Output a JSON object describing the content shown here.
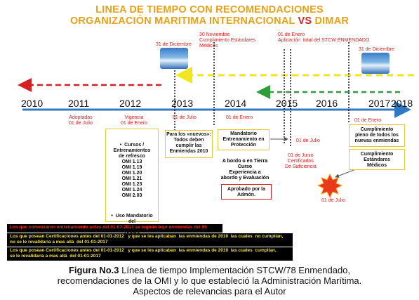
{
  "title": {
    "line1": "LINEA DE TIEMPO CON RECOMENDACIONES",
    "line2_a": "ORGANIZACIÓN MARITIMA INTERNACIONAL",
    "line2_vs": "VS",
    "line2_b": "DIMAR"
  },
  "years": [
    "2010",
    "2011",
    "2012",
    "2013",
    "2014",
    "2015",
    "2016",
    "2017",
    "2018"
  ],
  "top_notes": {
    "dic_2013": "31 de Diciembre",
    "nov_2014": "30 Noviembre\nCumplimiento Estándares\nMédicos",
    "ene_2016": "01 de Enero\nAplicación  total del STCW ENMENDADO",
    "dic_2017": "31 de Diciembre"
  },
  "below_notes": {
    "adoptadas": "Adoptadas\n01 de Julio",
    "vigencia": "Vigencia\n01 de Enero",
    "julio_2013": "01 de Julio",
    "enero_2014": "01 de Enero",
    "julio_2015": "01  de  Julio",
    "junio_2015": "01 de Junio\nCertificados\nDe Suficiencia",
    "julio_2016": "01 de Julio",
    "enero_2017": "01 de Enero"
  },
  "boxes": {
    "cursos": "•  Cursos /\nEntrenamientos\nde refresco\nOMI 1.13\nOMI 1.19\nOMI 1.20\nOMI 1.21\nOMI 1.23\nOMI 1.24\nOMI 2.03",
    "uso": "•  Uso Mandatorio\ndel\nTraining  Record\nBooks\nPara los «nuevos»",
    "nuevos": "Para los «nuevos»:\nTodos deben\ncumplir las\nEnmiendas 2010",
    "mandatorio": "Mandatorio\nEntrenamiento en\nProtección",
    "abordo": "A bordo o en Tierra\nCurso\nExperiencia a\nabordo y Evaluación",
    "aprobado": "Aprobado por la\nAdmón.",
    "cumplimiento": "Cumplimiento\npleno de todos los\nnuevas enmiendas",
    "estandares": "Cumplimiento\nEstándares\nMédicos"
  },
  "footer": {
    "line1": "Los que comenzaron  entrenamiento antes del 01-07-2013  se regirán  bajo   enmiendas del 95",
    "line2": "Los que posean Certificaciones antes del 01-01-2012   y que se les aplicaban  las enmiendas de 2010  las cuales  no cumplían,\nno se le revalidaría a mas allá  del 01-01-2017",
    "line3": "Los que posean Certificaciones antes del 01-01-2012   y que se les aplicaban  las enmiendas de 2010  las cuales  cumplían,\nse le revalidaría a mas allá  del 01-01-2017"
  },
  "caption": {
    "label": "Figura No.3",
    "text": " Línea de tiempo Implementación  STCW/78 Enmendado,",
    "line2": "recomendaciones de la OMI y lo que estableció la Administración  Marítima.",
    "line3": "Aspectos de relevancias  para el Autor"
  },
  "colors": {
    "title": "#e8a117",
    "vs": "#d42020",
    "timeline": "#2f78c4",
    "red_dash": "#d42020",
    "yellow_dash": "#f1e61e",
    "green_dash": "#2e9e3a"
  }
}
